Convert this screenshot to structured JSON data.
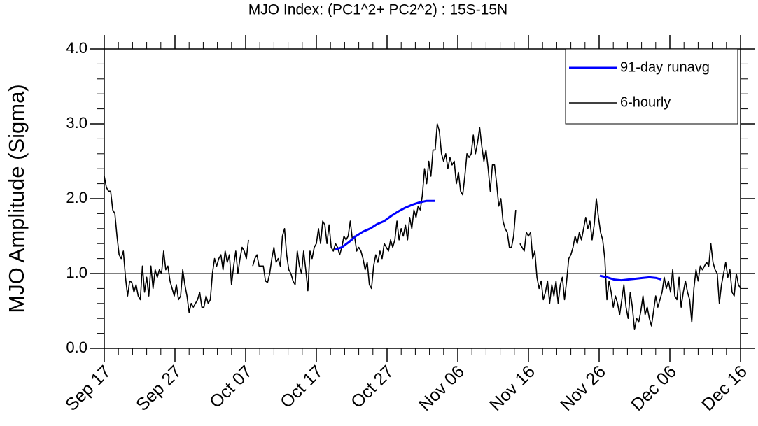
{
  "chart_data": {
    "type": "line",
    "title": "MJO Index: (PC1^2+ PC2^2) : 15S-15N",
    "y_label": "MJO Amplitude (Sigma)",
    "xlim": [
      0,
      90
    ],
    "ylim": [
      0,
      4
    ],
    "xticks": [
      {
        "value": 0,
        "label": "Sep 17"
      },
      {
        "value": 10,
        "label": "Sep 27"
      },
      {
        "value": 20,
        "label": "Oct 07"
      },
      {
        "value": 30,
        "label": "Oct 17"
      },
      {
        "value": 40,
        "label": "Oct 27"
      },
      {
        "value": 50,
        "label": "Nov 06"
      },
      {
        "value": 60,
        "label": "Nov 16"
      },
      {
        "value": 70,
        "label": "Nov 26"
      },
      {
        "value": 80,
        "label": "Dec 06"
      },
      {
        "value": 90,
        "label": "Dec 16"
      }
    ],
    "yticks": [
      {
        "value": 0,
        "label": "0.0"
      },
      {
        "value": 1,
        "label": "1.0"
      },
      {
        "value": 2,
        "label": "2.0"
      },
      {
        "value": 3,
        "label": "3.0"
      },
      {
        "value": 4,
        "label": "4.0"
      }
    ],
    "reference_line": 1,
    "legend": "upper right",
    "series": [
      {
        "name": "91-day runavg",
        "color": "#0000ff",
        "x": [
          32.6,
          33.6,
          34.6,
          35.6,
          36.6,
          37.6,
          38.6,
          39.6,
          40.6,
          41.6,
          42.6,
          43.6,
          44.6,
          45.6,
          46.8,
          58,
          70.1,
          71.1,
          72.1,
          73.1,
          74.1,
          75.1,
          76.1,
          77.1,
          78.1,
          78.8
        ],
        "values": [
          1.32,
          1.35,
          1.42,
          1.5,
          1.56,
          1.6,
          1.66,
          1.7,
          1.77,
          1.83,
          1.88,
          1.92,
          1.95,
          1.97,
          1.97,
          null,
          0.97,
          0.95,
          0.92,
          0.91,
          0.92,
          0.93,
          0.94,
          0.95,
          0.94,
          0.92
        ]
      },
      {
        "name": "6-hourly",
        "color": "#000000",
        "x": [
          0,
          0.3,
          0.6,
          0.9,
          1.2,
          1.5,
          1.8,
          2.1,
          2.4,
          2.7,
          3,
          3.3,
          3.6,
          3.9,
          4.2,
          4.5,
          4.8,
          5.1,
          5.4,
          5.7,
          6,
          6.3,
          6.6,
          6.9,
          7.2,
          7.5,
          7.8,
          8.1,
          8.4,
          8.7,
          9,
          9.3,
          9.6,
          9.9,
          10.2,
          10.5,
          10.8,
          11.1,
          11.4,
          11.7,
          12,
          12.3,
          12.6,
          12.9,
          13.2,
          13.5,
          13.8,
          14.1,
          14.4,
          14.7,
          15,
          15.3,
          15.6,
          15.9,
          16.2,
          16.5,
          16.8,
          17.1,
          17.4,
          17.7,
          18,
          18.3,
          18.6,
          18.9,
          19.2,
          19.5,
          19.8,
          20.1,
          20.4,
          20.7,
          21,
          21.3,
          21.6,
          21.9,
          22.2,
          22.5,
          22.8,
          23.1,
          23.4,
          23.7,
          24,
          24.3,
          24.6,
          24.9,
          25.2,
          25.5,
          25.8,
          26.1,
          26.4,
          26.7,
          27,
          27.3,
          27.6,
          27.9,
          28.2,
          28.5,
          28.8,
          29.1,
          29.4,
          29.7,
          30,
          30.3,
          30.6,
          30.9,
          31.2,
          31.5,
          31.8,
          32.1,
          32.4,
          32.7,
          33,
          33.3,
          33.6,
          33.9,
          34.2,
          34.5,
          34.8,
          35.1,
          35.4,
          35.7,
          36,
          36.3,
          36.6,
          36.9,
          37.2,
          37.5,
          37.8,
          38.1,
          38.4,
          38.7,
          39,
          39.3,
          39.6,
          39.9,
          40.2,
          40.5,
          40.8,
          41.1,
          41.4,
          41.7,
          42,
          42.3,
          42.6,
          42.9,
          43.2,
          43.5,
          43.8,
          44.1,
          44.4,
          44.7,
          45,
          45.3,
          45.6,
          45.9,
          46.2,
          46.5,
          46.8,
          47.1,
          47.4,
          47.7,
          48,
          48.3,
          48.6,
          48.9,
          49.2,
          49.5,
          49.8,
          50.1,
          50.4,
          50.7,
          51,
          51.3,
          51.6,
          51.9,
          52.2,
          52.5,
          52.8,
          53.1,
          53.4,
          53.7,
          54,
          54.3,
          54.6,
          54.9,
          55.2,
          55.5,
          55.8,
          56.1,
          56.4,
          56.7,
          57,
          57.3,
          57.6,
          57.9,
          58.2,
          58.5,
          58.8,
          59.1,
          59.4,
          59.7,
          60,
          60.3,
          60.6,
          60.9,
          61.2,
          61.5,
          61.8,
          62.1,
          62.4,
          62.7,
          63,
          63.3,
          63.6,
          63.9,
          64.2,
          64.5,
          64.8,
          65.1,
          65.4,
          65.7,
          66,
          66.3,
          66.6,
          66.9,
          67.2,
          67.5,
          67.8,
          68.1,
          68.4,
          68.7,
          69,
          69.3,
          69.6,
          69.9,
          70.2,
          70.5,
          70.8,
          71.1,
          71.4,
          71.7,
          72,
          72.3,
          72.6,
          72.9,
          73.2,
          73.5,
          73.8,
          74.1,
          74.4,
          74.7,
          75,
          75.3,
          75.6,
          75.9,
          76.2,
          76.5,
          76.8,
          77.1,
          77.4,
          77.7,
          78,
          78.3,
          78.6,
          78.9,
          79.2,
          79.5,
          79.8,
          80.1,
          80.4,
          80.7,
          81,
          81.3,
          81.6,
          81.9,
          82.2,
          82.5,
          82.8,
          83.1,
          83.4,
          83.7,
          84,
          84.3,
          84.6,
          84.9,
          85.2,
          85.5,
          85.8,
          86.1,
          86.4,
          86.7,
          87,
          87.3,
          87.6,
          87.9,
          88.2,
          88.5,
          88.8,
          89.1,
          89.4,
          89.7,
          90
        ],
        "values": [
          2.3,
          2.15,
          2.1,
          2.1,
          1.85,
          1.8,
          1.5,
          1.25,
          1.2,
          1.3,
          0.95,
          0.7,
          0.9,
          0.88,
          0.75,
          0.85,
          0.7,
          0.65,
          1.1,
          0.75,
          0.95,
          0.7,
          1.1,
          0.8,
          1.05,
          0.95,
          1.05,
          1.0,
          1.3,
          1.05,
          1.1,
          0.9,
          0.8,
          0.7,
          0.85,
          0.65,
          0.7,
          1.05,
          0.85,
          0.7,
          0.48,
          0.6,
          0.55,
          0.6,
          0.65,
          0.75,
          0.55,
          0.55,
          0.7,
          0.6,
          0.65,
          1.0,
          1.2,
          1.1,
          1.2,
          1.25,
          1.05,
          1.3,
          1.15,
          1.25,
          0.85,
          1.1,
          1.3,
          1.0,
          1.2,
          1.35,
          1.3,
          1.2,
          1.45,
          null,
          1.1,
          1.2,
          1.25,
          1.1,
          1.1,
          1.1,
          0.9,
          0.88,
          1.0,
          1.2,
          1.35,
          1.15,
          1.2,
          1.1,
          1.5,
          1.6,
          1.25,
          1.05,
          1.0,
          0.9,
          0.85,
          1.3,
          1.1,
          1.0,
          1.3,
          1.05,
          0.77,
          1.3,
          1.2,
          1.35,
          1.4,
          1.6,
          1.4,
          1.7,
          1.65,
          1.4,
          1.65,
          1.35,
          1.3,
          1.4,
          1.35,
          1.25,
          1.35,
          1.5,
          1.45,
          1.5,
          1.7,
          1.45,
          1.5,
          1.3,
          1.35,
          1.3,
          1.2,
          1.05,
          1.15,
          0.85,
          0.8,
          1.1,
          1.25,
          1.15,
          1.3,
          1.2,
          1.4,
          1.35,
          1.3,
          1.45,
          1.35,
          1.45,
          1.7,
          1.45,
          1.6,
          1.5,
          1.65,
          1.45,
          1.75,
          1.6,
          1.85,
          1.75,
          1.9,
          1.85,
          2.05,
          2.4,
          2.2,
          2.5,
          2.3,
          2.65,
          2.65,
          3.0,
          2.9,
          2.6,
          2.5,
          2.6,
          2.4,
          2.55,
          2.45,
          2.5,
          2.2,
          2.35,
          2.1,
          2.05,
          2.3,
          2.6,
          2.55,
          2.6,
          2.85,
          2.6,
          2.75,
          2.95,
          2.7,
          2.5,
          2.65,
          2.4,
          2.1,
          2.45,
          2.45,
          2.2,
          1.9,
          2.0,
          1.7,
          1.6,
          1.55,
          1.35,
          1.35,
          1.5,
          1.85,
          null,
          1.4,
          1.35,
          1.3,
          1.55,
          1.5,
          1.55,
          1.2,
          1.3,
          0.95,
          0.8,
          0.9,
          0.65,
          0.75,
          0.9,
          0.6,
          0.85,
          0.7,
          0.9,
          0.6,
          0.85,
          0.95,
          0.65,
          0.9,
          1.2,
          1.25,
          1.35,
          1.5,
          1.4,
          1.55,
          1.45,
          1.6,
          1.75,
          1.6,
          1.7,
          1.45,
          1.65,
          2.0,
          1.75,
          1.55,
          1.45,
          1.2,
          0.65,
          0.9,
          0.75,
          0.55,
          0.7,
          0.6,
          0.45,
          0.65,
          0.85,
          0.55,
          0.4,
          0.75,
          0.55,
          0.25,
          0.4,
          0.35,
          0.5,
          0.7,
          0.45,
          0.55,
          0.4,
          0.3,
          0.5,
          0.7,
          0.55,
          0.65,
          0.75,
          0.95,
          0.8,
          0.9,
          0.75,
          1.05,
          0.7,
          0.65,
          0.95,
          0.55,
          0.75,
          0.9,
          0.75,
          0.65,
          0.35,
          0.8,
          1.05,
          0.9,
          1.1,
          1.05,
          1.1,
          1.15,
          1.1,
          1.4,
          1.15,
          1.05,
          1.0,
          0.6,
          0.85,
          1.0,
          1.15,
          0.95,
          1.05,
          0.75,
          0.7,
          1.0,
          0.85,
          0.8
        ]
      }
    ]
  }
}
